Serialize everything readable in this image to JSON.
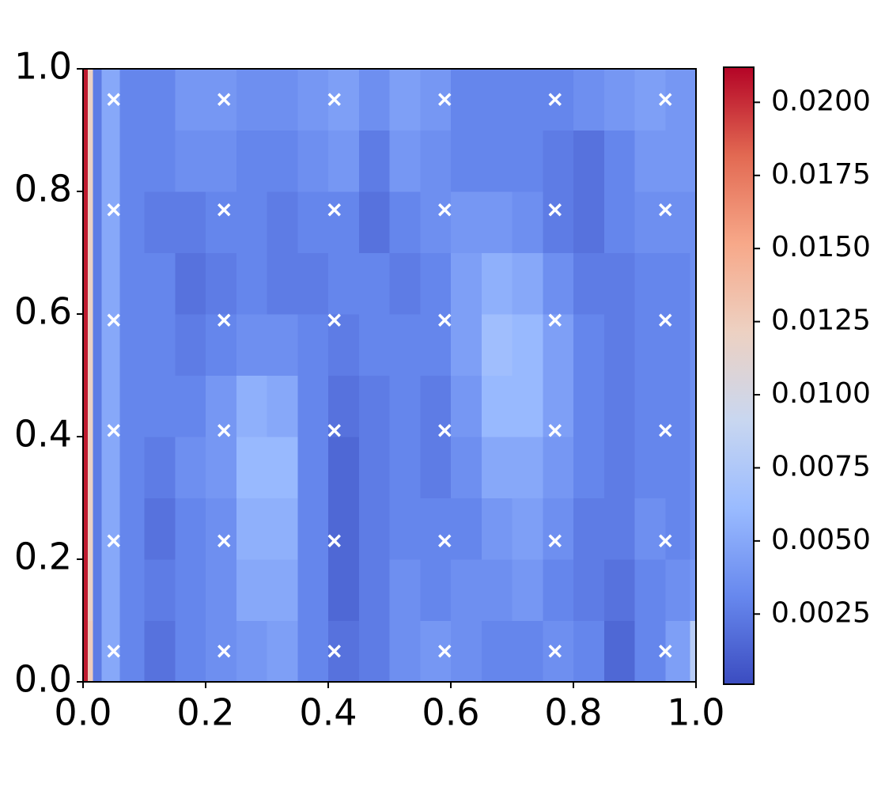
{
  "chart_data": {
    "type": "heatmap",
    "xbins": [
      0,
      0.008,
      0.016,
      0.03,
      0.06,
      0.1,
      0.15,
      0.2,
      0.25,
      0.3,
      0.35,
      0.4,
      0.45,
      0.5,
      0.55,
      0.6,
      0.65,
      0.7,
      0.75,
      0.8,
      0.85,
      0.9,
      0.95,
      0.99,
      1.0
    ],
    "ybins": [
      0,
      0.1,
      0.2,
      0.3,
      0.4,
      0.5,
      0.6,
      0.7,
      0.8,
      0.9,
      1.0
    ],
    "z": [
      [
        0.0205,
        0.0125,
        0.0025,
        0.005,
        0.003,
        0.002,
        0.003,
        0.0035,
        0.004,
        0.0045,
        0.003,
        0.002,
        0.0025,
        0.0035,
        0.004,
        0.0035,
        0.003,
        0.003,
        0.0035,
        0.003,
        0.0015,
        0.003,
        0.0045,
        0.008
      ],
      [
        0.0205,
        0.012,
        0.0025,
        0.005,
        0.003,
        0.0025,
        0.003,
        0.0035,
        0.005,
        0.005,
        0.003,
        0.0015,
        0.0025,
        0.0035,
        0.003,
        0.0035,
        0.0035,
        0.004,
        0.003,
        0.0025,
        0.002,
        0.003,
        0.0035,
        0.004
      ],
      [
        0.0205,
        0.012,
        0.0025,
        0.005,
        0.003,
        0.002,
        0.003,
        0.0035,
        0.0055,
        0.0055,
        0.003,
        0.0015,
        0.0025,
        0.003,
        0.003,
        0.003,
        0.004,
        0.0045,
        0.0035,
        0.0025,
        0.0025,
        0.0035,
        0.003,
        0.0035
      ],
      [
        0.0205,
        0.012,
        0.0025,
        0.005,
        0.003,
        0.0025,
        0.0035,
        0.004,
        0.006,
        0.006,
        0.003,
        0.0015,
        0.0025,
        0.003,
        0.0025,
        0.0035,
        0.005,
        0.005,
        0.004,
        0.003,
        0.0025,
        0.003,
        0.003,
        0.0035
      ],
      [
        0.0205,
        0.012,
        0.0025,
        0.005,
        0.003,
        0.003,
        0.003,
        0.004,
        0.0055,
        0.005,
        0.003,
        0.002,
        0.0025,
        0.003,
        0.0025,
        0.004,
        0.006,
        0.006,
        0.0045,
        0.003,
        0.0025,
        0.003,
        0.003,
        0.0035
      ],
      [
        0.0205,
        0.012,
        0.0025,
        0.005,
        0.003,
        0.003,
        0.0025,
        0.003,
        0.0035,
        0.0035,
        0.003,
        0.0025,
        0.003,
        0.003,
        0.003,
        0.0045,
        0.0065,
        0.006,
        0.0045,
        0.003,
        0.0025,
        0.003,
        0.003,
        0.0035
      ],
      [
        0.0205,
        0.012,
        0.0025,
        0.005,
        0.003,
        0.003,
        0.002,
        0.0025,
        0.003,
        0.0025,
        0.0025,
        0.003,
        0.003,
        0.0025,
        0.003,
        0.0045,
        0.0055,
        0.005,
        0.0035,
        0.0025,
        0.0025,
        0.003,
        0.003,
        0.0035
      ],
      [
        0.0205,
        0.012,
        0.0025,
        0.005,
        0.003,
        0.0025,
        0.0025,
        0.003,
        0.003,
        0.0025,
        0.003,
        0.003,
        0.002,
        0.003,
        0.0035,
        0.004,
        0.004,
        0.0035,
        0.0025,
        0.002,
        0.003,
        0.0035,
        0.0035,
        0.0035
      ],
      [
        0.0205,
        0.012,
        0.0025,
        0.005,
        0.003,
        0.003,
        0.0035,
        0.0035,
        0.003,
        0.003,
        0.0035,
        0.004,
        0.0025,
        0.004,
        0.0035,
        0.003,
        0.003,
        0.003,
        0.0025,
        0.002,
        0.003,
        0.004,
        0.004,
        0.004
      ],
      [
        0.0205,
        0.012,
        0.0025,
        0.005,
        0.003,
        0.003,
        0.004,
        0.004,
        0.0035,
        0.0035,
        0.004,
        0.0045,
        0.0035,
        0.0045,
        0.004,
        0.003,
        0.003,
        0.003,
        0.003,
        0.0035,
        0.004,
        0.0045,
        0.004,
        0.004
      ]
    ],
    "colormap": [
      "#3b4cc0",
      "#6788ee",
      "#9abbff",
      "#c9d7f0",
      "#edd1c2",
      "#f7a889",
      "#e26952",
      "#b40426"
    ],
    "clim": [
      0.0001,
      0.0212
    ],
    "cticks": [
      0.0025,
      {
        "value": 0.005,
        "label": "0.0050"
      },
      0.0075,
      {
        "value": 0.01,
        "label": "0.0100"
      },
      0.0125,
      {
        "value": 0.015,
        "label": "0.0150"
      },
      0.0175,
      {
        "value": 0.02,
        "label": "0.0200"
      }
    ],
    "xlim": [
      0,
      1
    ],
    "ylim": [
      0,
      1
    ],
    "xticks": [
      {
        "value": 0,
        "label": "0.0"
      },
      0.2,
      0.4,
      0.6,
      0.8,
      {
        "value": 1,
        "label": "1.0"
      }
    ],
    "yticks": [
      {
        "value": 0,
        "label": "0.0"
      },
      0.2,
      0.4,
      0.6,
      0.8,
      {
        "value": 1,
        "label": "1.0"
      }
    ],
    "points": {
      "marker": "x",
      "color": "#ffffff",
      "x": [
        0.05,
        0.23,
        0.41,
        0.59,
        0.77,
        0.95,
        0.05,
        0.23,
        0.41,
        0.59,
        0.77,
        0.95,
        0.05,
        0.23,
        0.41,
        0.59,
        0.77,
        0.95,
        0.05,
        0.23,
        0.41,
        0.59,
        0.77,
        0.95,
        0.05,
        0.23,
        0.41,
        0.59,
        0.77,
        0.95,
        0.05,
        0.23,
        0.41,
        0.59,
        0.77,
        0.95
      ],
      "y": [
        0.05,
        0.05,
        0.05,
        0.05,
        0.05,
        0.05,
        0.23,
        0.23,
        0.23,
        0.23,
        0.23,
        0.23,
        0.41,
        0.41,
        0.41,
        0.41,
        0.41,
        0.41,
        0.59,
        0.59,
        0.59,
        0.59,
        0.59,
        0.59,
        0.77,
        0.77,
        0.77,
        0.77,
        0.77,
        0.77,
        0.95,
        0.95,
        0.95,
        0.95,
        0.95,
        0.95
      ]
    }
  }
}
